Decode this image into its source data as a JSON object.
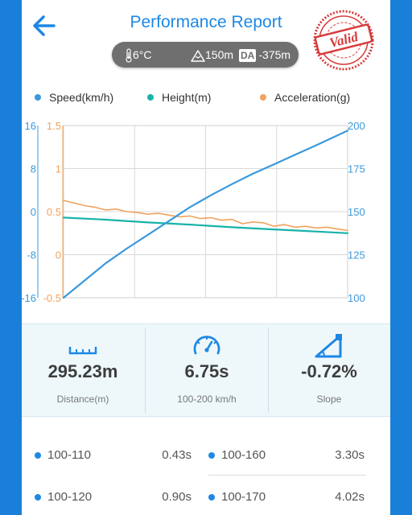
{
  "header": {
    "title": "Performance Report",
    "stamp_text": "Valid"
  },
  "conditions": {
    "temperature": "6°C",
    "elevation": "150m",
    "density_altitude_label": "DA",
    "density_altitude": "-375m"
  },
  "legend": [
    {
      "name": "Speed(km/h)",
      "color": "#3a99dc"
    },
    {
      "name": "Height(m)",
      "color": "#17b3a9"
    },
    {
      "name": "Acceleration(g)",
      "color": "#f0a35e"
    }
  ],
  "chart_data": {
    "type": "line",
    "title": "",
    "x_axis": {
      "range": [
        0,
        6.75
      ],
      "labels": false
    },
    "height_axis": {
      "ticks": [
        "16",
        "8",
        "0",
        "-8",
        "-16"
      ],
      "range": [
        -16,
        16
      ],
      "color": "#3a99dc"
    },
    "accel_axis": {
      "ticks": [
        "1.5",
        "1",
        "0.5",
        "0",
        "-0.5"
      ],
      "range": [
        -0.5,
        1.5
      ],
      "color": "#f0a35e"
    },
    "speed_axis": {
      "ticks": [
        "200",
        "175",
        "150",
        "125",
        "100"
      ],
      "range": [
        100,
        200
      ],
      "color": "#3a99dc"
    },
    "grid": true,
    "series": [
      {
        "name": "Speed(km/h)",
        "axis": "speed",
        "color": "#3a99dc",
        "x": [
          0,
          0.5,
          1,
          1.5,
          2,
          2.5,
          3,
          3.5,
          4,
          4.5,
          5,
          5.5,
          6,
          6.75
        ],
        "y": [
          100,
          110,
          120,
          128.5,
          136.5,
          144.5,
          152.5,
          159.5,
          166,
          172,
          177.5,
          183,
          188.5,
          197
        ]
      },
      {
        "name": "Height(m)",
        "axis": "height",
        "color": "#17b3a9",
        "x": [
          0,
          1,
          2,
          3,
          4,
          5,
          6,
          6.75
        ],
        "y": [
          -1.1,
          -1.5,
          -2.0,
          -2.4,
          -2.9,
          -3.3,
          -3.7,
          -4.0
        ]
      },
      {
        "name": "Acceleration(g)",
        "axis": "accel",
        "color": "#f0a35e",
        "x": [
          0,
          0.25,
          0.5,
          0.75,
          1,
          1.25,
          1.5,
          1.75,
          2,
          2.25,
          2.5,
          2.75,
          3,
          3.25,
          3.5,
          3.75,
          4,
          4.25,
          4.5,
          4.75,
          5,
          5.25,
          5.5,
          5.75,
          6,
          6.25,
          6.5,
          6.75
        ],
        "y": [
          0.63,
          0.6,
          0.57,
          0.55,
          0.52,
          0.53,
          0.5,
          0.49,
          0.47,
          0.48,
          0.46,
          0.44,
          0.45,
          0.42,
          0.43,
          0.4,
          0.41,
          0.36,
          0.38,
          0.37,
          0.33,
          0.35,
          0.32,
          0.33,
          0.31,
          0.32,
          0.3,
          0.28
        ]
      }
    ]
  },
  "stats": [
    {
      "value": "295.23m",
      "label": "Distance(m)",
      "icon": "ruler-icon"
    },
    {
      "value": "6.75s",
      "label": "100-200 km/h",
      "icon": "speedometer-icon"
    },
    {
      "value": "-0.72%",
      "label": "Slope",
      "icon": "slope-icon"
    }
  ],
  "splits": [
    {
      "label": "100-110",
      "time": "0.43s"
    },
    {
      "label": "100-160",
      "time": "3.30s"
    },
    {
      "label": "100-120",
      "time": "0.90s"
    },
    {
      "label": "100-170",
      "time": "4.02s"
    }
  ]
}
